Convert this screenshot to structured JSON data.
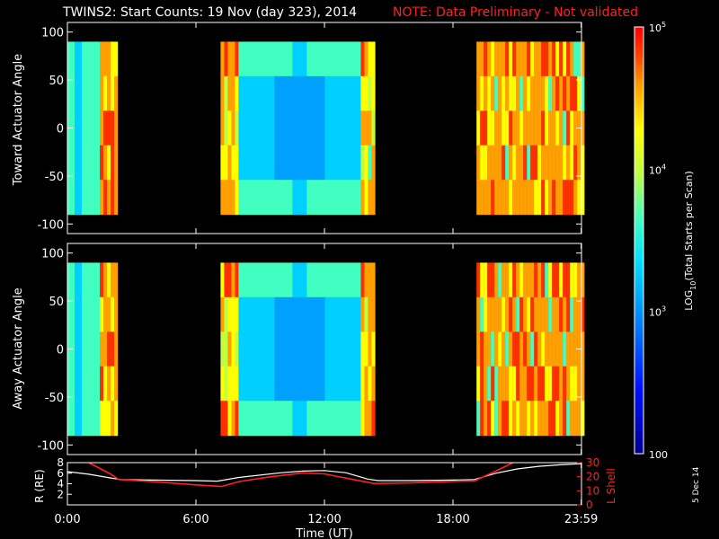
{
  "title": "TWINS2: Start Counts: 19 Nov (day 323), 2014",
  "note": "NOTE: Data Preliminary - Not validated",
  "date_stamp": "5 Dec 14",
  "colors": {
    "background": "#000000",
    "axis": "#ffffff",
    "note": "#ff2020",
    "r_line": "#ffffff",
    "l_line": "#ff2020"
  },
  "chart_data": [
    {
      "type": "heatmap",
      "ylabel": "Toward Actuator Angle",
      "ylim": [
        -110,
        110
      ],
      "y_ticks": [
        "100",
        "50",
        "0",
        "-50",
        "-100"
      ],
      "angle_range": [
        -90,
        90
      ],
      "data_intervals_hours": [
        [
          0.0,
          2.3
        ],
        [
          7.15,
          14.35
        ],
        [
          19.1,
          24.0
        ]
      ],
      "colorbar": {
        "scale": "log",
        "range": [
          100,
          100000
        ],
        "label": "LOG10(Total Starts per Scan)",
        "tick_labels": [
          "10^5",
          "10^4",
          "10^3",
          "100"
        ]
      }
    },
    {
      "type": "heatmap",
      "ylabel": "Away Actuator Angle",
      "ylim": [
        -110,
        110
      ],
      "y_ticks": [
        "100",
        "50",
        "0",
        "-50",
        "-100"
      ],
      "angle_range": [
        -90,
        90
      ],
      "data_intervals_hours": [
        [
          0.0,
          2.3
        ],
        [
          7.15,
          14.35
        ],
        [
          19.1,
          24.0
        ]
      ]
    },
    {
      "type": "line",
      "xlabel": "Time (UT)",
      "x_ticks": [
        "0:00",
        "6:00",
        "12:00",
        "18:00",
        "23:59"
      ],
      "xlim": [
        0,
        24
      ],
      "ylabel_left": "R (RE)",
      "ylim_left": [
        0,
        8
      ],
      "y_ticks_left": [
        "8",
        "6",
        "4",
        "2"
      ],
      "ylabel_right": "L Shell",
      "ylim_right": [
        0,
        30
      ],
      "y_ticks_right": [
        "30",
        "20",
        "10",
        "0"
      ],
      "series": [
        {
          "name": "R (RE)",
          "axis": "left",
          "color": "#ffffff",
          "x": [
            0,
            1,
            2,
            2.5,
            4,
            6,
            7,
            8,
            10,
            11,
            12,
            13,
            14,
            14.5,
            16,
            18,
            19,
            20,
            21,
            22,
            23,
            24
          ],
          "y": [
            6.3,
            5.8,
            5.1,
            4.8,
            4.7,
            4.6,
            4.5,
            5.2,
            6.1,
            6.4,
            6.5,
            6.1,
            4.9,
            4.6,
            4.6,
            4.7,
            4.8,
            6.0,
            6.8,
            7.3,
            7.6,
            7.8
          ]
        },
        {
          "name": "L Shell",
          "axis": "right",
          "color": "#ff2020",
          "x": [
            1,
            2,
            2.4,
            4,
            6,
            7.2,
            8,
            9.5,
            11,
            12,
            13,
            14.3,
            16,
            18,
            19,
            20,
            20.8
          ],
          "y": [
            30,
            22,
            18,
            16.5,
            14.2,
            13.0,
            16.5,
            20,
            22.7,
            22,
            19,
            15.2,
            15.6,
            16.7,
            17,
            24,
            30
          ]
        }
      ]
    }
  ]
}
